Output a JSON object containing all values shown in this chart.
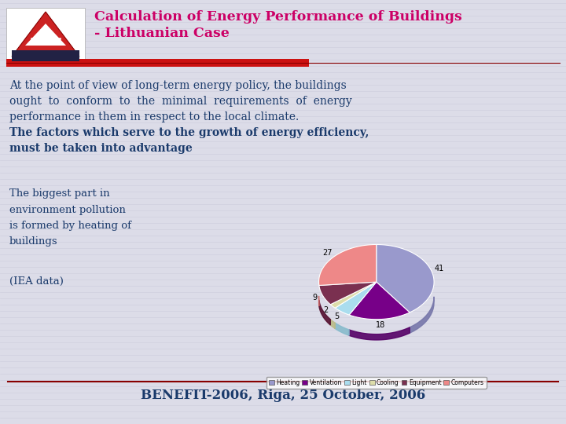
{
  "title_line1": "Calculation of Energy Performance of Buildings",
  "title_line2": "- Lithuanian Case",
  "title_color": "#cc0066",
  "background_color": "#dcdce8",
  "header_bar_color": "#cc1111",
  "dark_line_color": "#880000",
  "body_text_color": "#1a3a6b",
  "footer_color": "#1a3a6b",
  "footer_text": "BENEFIT-2006, Riga, 25 October, 2006",
  "body_text_lines": [
    "At the point of view of long-term energy policy, the buildings",
    "ought  to  conform  to  the  minimal  requirements  of  energy",
    "performance in them in respect to the local climate.",
    "The factors which serve to the growth of energy efficiency,",
    "must be taken into advantage"
  ],
  "body_text2": "The biggest part in\nenvironment pollution\nis formed by heating of\nbuildings",
  "body_text3": "(IEA data)",
  "pie_values": [
    41,
    18,
    5,
    2,
    9,
    27
  ],
  "pie_labels": [
    "Heating",
    "Ventilation",
    "Light",
    "Cooling",
    "Equipment",
    "Computers"
  ],
  "pie_colors": [
    "#9999cc",
    "#770088",
    "#aaddee",
    "#ddddaa",
    "#7a3050",
    "#ee8888"
  ],
  "pie_edge_colors": [
    "#7777aa",
    "#550066",
    "#88bbcc",
    "#bbbb88",
    "#551030",
    "#cc6666"
  ],
  "pie_label_pos_r": 0.82,
  "stripe_color": "#c8c8d8",
  "logo_outer_color": "#cc2222",
  "logo_inner_color": "#222244"
}
